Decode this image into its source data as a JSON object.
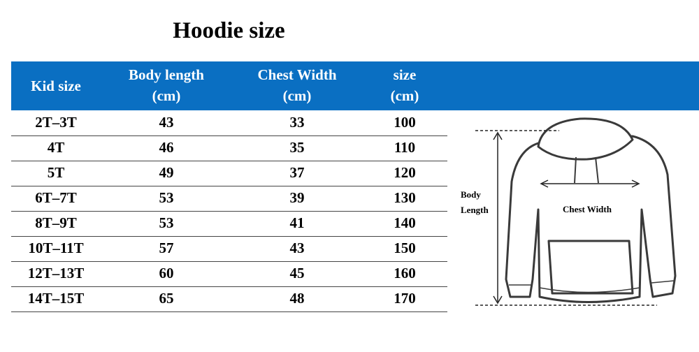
{
  "title": "Hoodie size",
  "table": {
    "columns": [
      [
        "Kid size"
      ],
      [
        "Body length",
        "(cm)"
      ],
      [
        "Chest Width",
        "(cm)"
      ],
      [
        "size",
        "(cm)"
      ]
    ],
    "rows": [
      [
        "2T–3T",
        43,
        33,
        100
      ],
      [
        "4T",
        46,
        35,
        110
      ],
      [
        "5T",
        49,
        37,
        120
      ],
      [
        "6T–7T",
        53,
        39,
        130
      ],
      [
        "8T–9T",
        53,
        41,
        140
      ],
      [
        "10T–11T",
        57,
        43,
        150
      ],
      [
        "12T–13T",
        60,
        45,
        160
      ],
      [
        "14T–15T",
        65,
        48,
        170
      ]
    ]
  },
  "illustration": {
    "body_length_label": [
      "Body",
      "Length"
    ],
    "chest_width_label": "Chest Width"
  }
}
